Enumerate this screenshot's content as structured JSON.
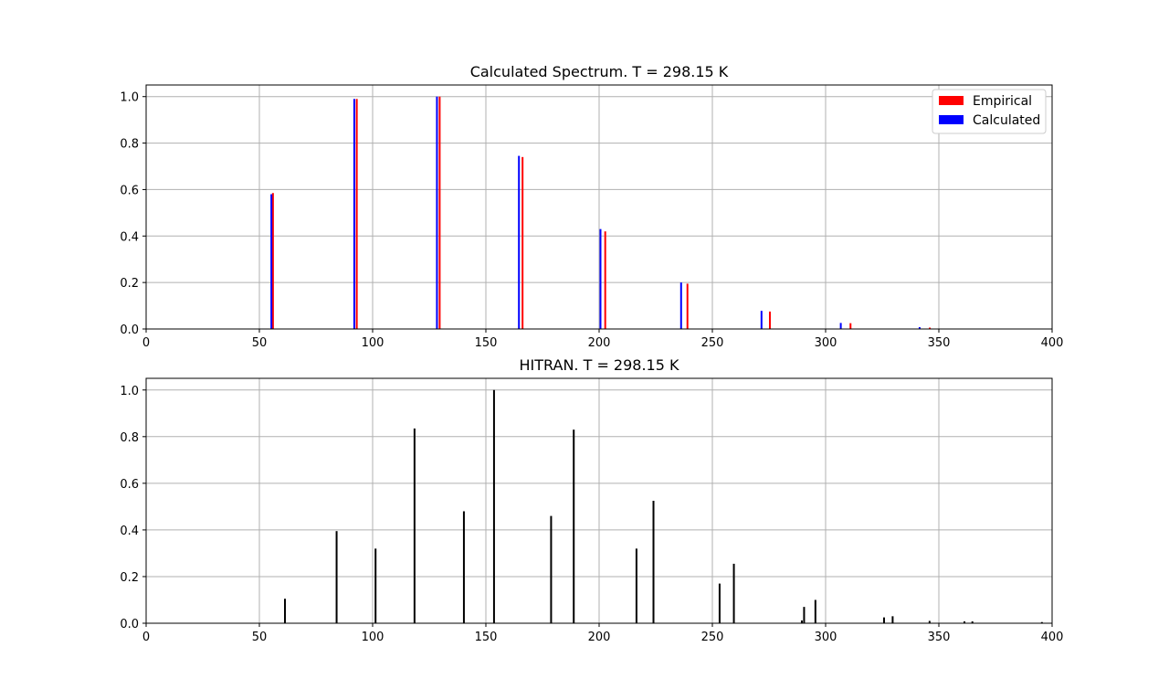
{
  "chart_data": [
    {
      "type": "bar",
      "title": "Calculated Spectrum. T = 298.15 K",
      "xlabel": "",
      "ylabel": "",
      "xlim": [
        0,
        400
      ],
      "ylim": [
        0,
        1.05
      ],
      "x_ticks": [
        "0",
        "50",
        "100",
        "150",
        "200",
        "250",
        "300",
        "350",
        "400"
      ],
      "y_ticks": [
        "0.0",
        "0.2",
        "0.4",
        "0.6",
        "0.8",
        "1.0"
      ],
      "grid": true,
      "legend_position": "top-right",
      "series": [
        {
          "name": "Empirical",
          "color": "#ff0000",
          "x": [
            56,
            93,
            129.6,
            166.2,
            202.7,
            239,
            275.4,
            311,
            346
          ],
          "values": [
            0.585,
            0.99,
            1.0,
            0.74,
            0.42,
            0.195,
            0.075,
            0.025,
            0.006
          ]
        },
        {
          "name": "Calculated",
          "color": "#0000ff",
          "x": [
            55.3,
            91.9,
            128.4,
            164.6,
            200.6,
            236.2,
            271.7,
            306.7,
            341.5
          ],
          "values": [
            0.58,
            0.99,
            1.0,
            0.745,
            0.43,
            0.2,
            0.078,
            0.026,
            0.008
          ]
        }
      ]
    },
    {
      "type": "bar",
      "title": "HITRAN. T = 298.15 K",
      "xlabel": "",
      "ylabel": "",
      "xlim": [
        0,
        400
      ],
      "ylim": [
        0,
        1.05
      ],
      "x_ticks": [
        "0",
        "50",
        "100",
        "150",
        "200",
        "250",
        "300",
        "350",
        "400"
      ],
      "y_ticks": [
        "0.0",
        "0.2",
        "0.4",
        "0.6",
        "0.8",
        "1.0"
      ],
      "grid": true,
      "series": [
        {
          "color": "#000000",
          "x": [
            61.3,
            84.1,
            101.3,
            118.5,
            140.3,
            153.6,
            178.8,
            188.8,
            216.5,
            224,
            253.2,
            259.5,
            289.5,
            290.5,
            295.5,
            325.8,
            329.6,
            345.9,
            361.3,
            364.8,
            395.5
          ],
          "values": [
            0.105,
            0.395,
            0.32,
            0.835,
            0.48,
            1.0,
            0.46,
            0.83,
            0.32,
            0.525,
            0.17,
            0.255,
            0.012,
            0.07,
            0.1,
            0.025,
            0.03,
            0.01,
            0.008,
            0.008,
            0.005
          ]
        }
      ]
    }
  ]
}
